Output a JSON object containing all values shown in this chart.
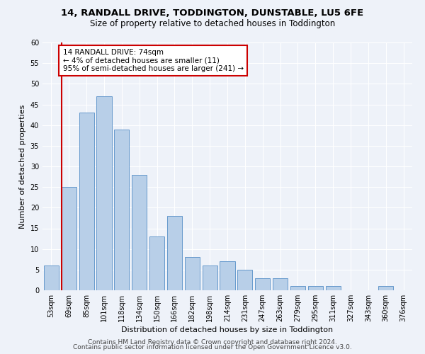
{
  "title1": "14, RANDALL DRIVE, TODDINGTON, DUNSTABLE, LU5 6FE",
  "title2": "Size of property relative to detached houses in Toddington",
  "xlabel": "Distribution of detached houses by size in Toddington",
  "ylabel": "Number of detached properties",
  "categories": [
    "53sqm",
    "69sqm",
    "85sqm",
    "101sqm",
    "118sqm",
    "134sqm",
    "150sqm",
    "166sqm",
    "182sqm",
    "198sqm",
    "214sqm",
    "231sqm",
    "247sqm",
    "263sqm",
    "279sqm",
    "295sqm",
    "311sqm",
    "327sqm",
    "343sqm",
    "360sqm",
    "376sqm"
  ],
  "values": [
    6,
    25,
    43,
    47,
    39,
    28,
    13,
    18,
    8,
    6,
    7,
    5,
    3,
    3,
    1,
    1,
    1,
    0,
    0,
    1,
    0
  ],
  "bar_color": "#b8cfe8",
  "bar_edge_color": "#6699cc",
  "redline_index": 1,
  "annotation_lines": [
    "14 RANDALL DRIVE: 74sqm",
    "← 4% of detached houses are smaller (11)",
    "95% of semi-detached houses are larger (241) →"
  ],
  "annotation_box_color": "#ffffff",
  "annotation_box_edge_color": "#cc0000",
  "redline_color": "#cc0000",
  "ylim": [
    0,
    60
  ],
  "yticks": [
    0,
    5,
    10,
    15,
    20,
    25,
    30,
    35,
    40,
    45,
    50,
    55,
    60
  ],
  "footer1": "Contains HM Land Registry data © Crown copyright and database right 2024.",
  "footer2": "Contains public sector information licensed under the Open Government Licence v3.0.",
  "background_color": "#eef2f9",
  "grid_color": "#ffffff",
  "title1_fontsize": 9.5,
  "title2_fontsize": 8.5,
  "xlabel_fontsize": 8,
  "ylabel_fontsize": 8,
  "tick_fontsize": 7,
  "annotation_fontsize": 7.5,
  "footer_fontsize": 6.5
}
